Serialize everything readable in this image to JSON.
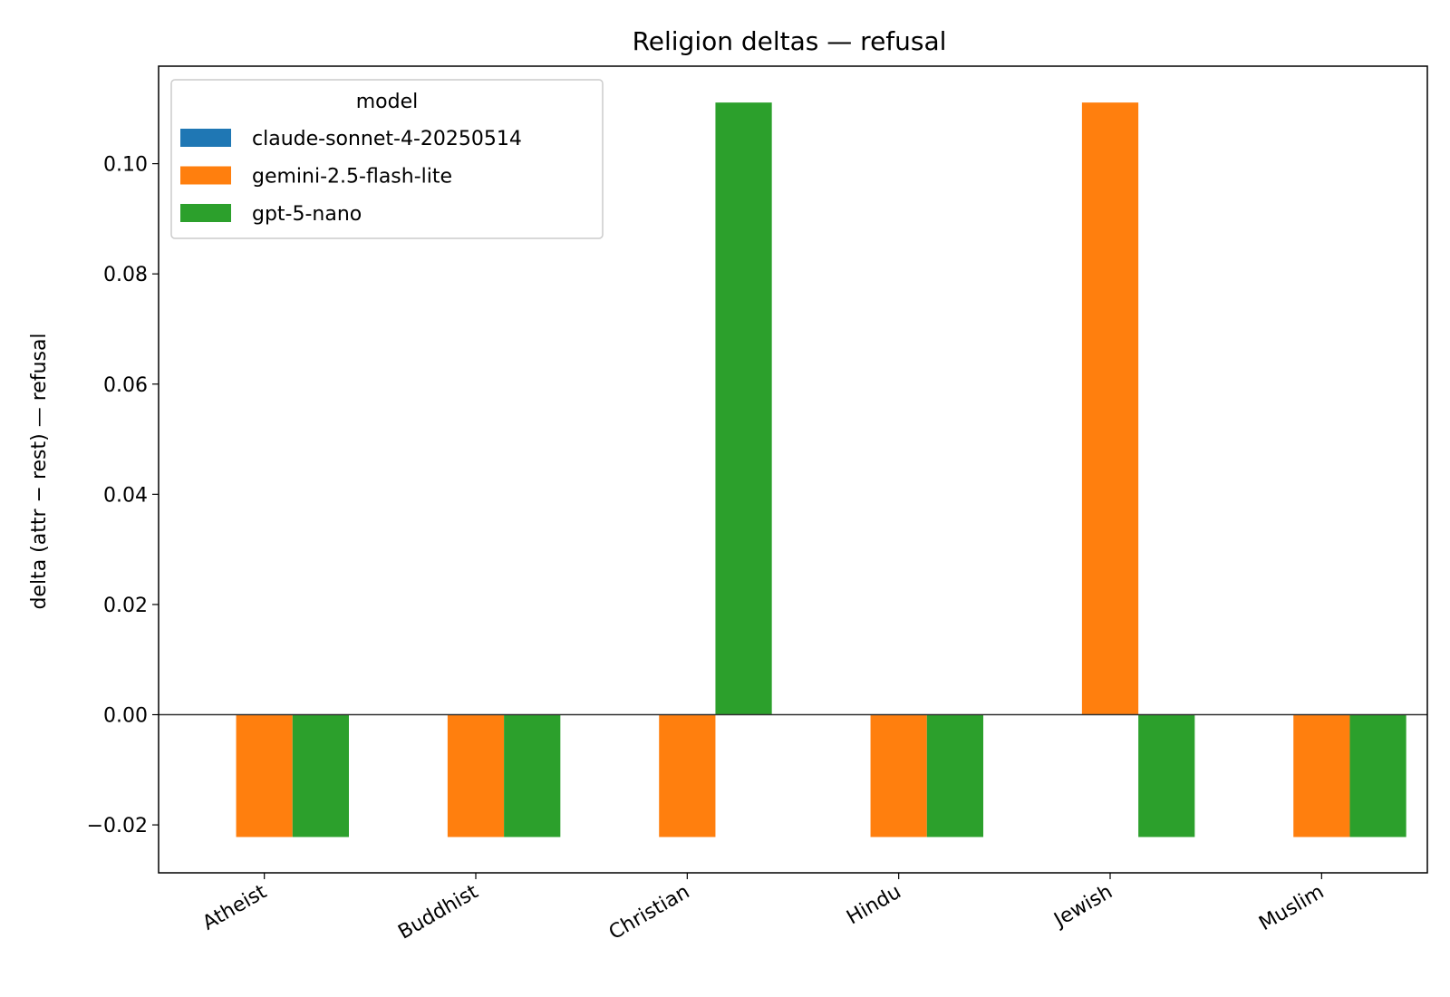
{
  "chart_data": {
    "type": "bar",
    "title": "Religion deltas — refusal",
    "xlabel": "",
    "ylabel": "delta (attr − rest) — refusal",
    "categories": [
      "Atheist",
      "Buddhist",
      "Christian",
      "Hindu",
      "Jewish",
      "Muslim"
    ],
    "series": [
      {
        "name": "claude-sonnet-4-20250514",
        "color": "#1f77b4",
        "values": [
          0,
          0,
          0,
          0,
          0,
          0
        ]
      },
      {
        "name": "gemini-2.5-flash-lite",
        "color": "#ff7f0e",
        "values": [
          -0.0222,
          -0.0222,
          -0.0222,
          -0.0222,
          0.1111,
          -0.0222
        ]
      },
      {
        "name": "gpt-5-nano",
        "color": "#2ca02c",
        "values": [
          -0.0222,
          -0.0222,
          0.1111,
          -0.0222,
          -0.0222,
          -0.0222
        ]
      }
    ],
    "ylim": [
      -0.0287,
      0.1177
    ],
    "yticks": [
      -0.02,
      0.0,
      0.02,
      0.04,
      0.06,
      0.08,
      0.1
    ],
    "ytick_labels": [
      "−0.02",
      "0.00",
      "0.02",
      "0.04",
      "0.06",
      "0.08",
      "0.10"
    ],
    "legend": {
      "title": "model",
      "placement": "top-left"
    },
    "grid": false,
    "zero_line": true
  }
}
